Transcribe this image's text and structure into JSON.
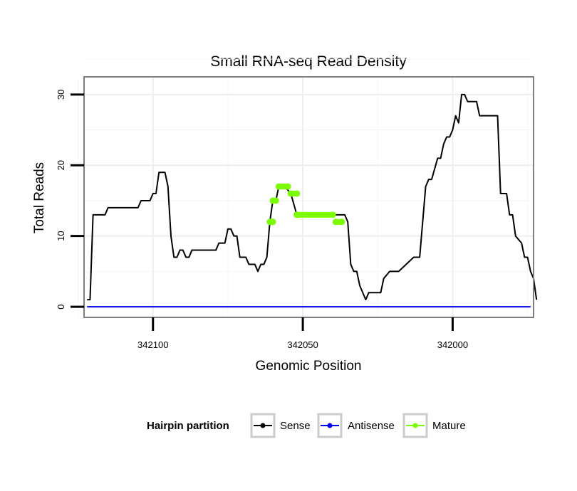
{
  "chart_data": {
    "type": "line",
    "title": "Small RNA-seq Read Density",
    "xlabel": "Genomic Position",
    "ylabel": "Total Reads",
    "x_reversed": true,
    "xlim": [
      342123,
      341973
    ],
    "ylim": [
      -1.5,
      32.5
    ],
    "xticks": [
      342100,
      342050,
      342000
    ],
    "xtick_labels": [
      "342100",
      "342050",
      "342000"
    ],
    "yticks": [
      0,
      10,
      20,
      30
    ],
    "ytick_labels": [
      "0",
      "10",
      "20",
      "30"
    ],
    "grid": true,
    "legend": {
      "title": "Hairpin partition",
      "position": "bottom",
      "entries": [
        "Sense",
        "Antisense",
        "Mature"
      ]
    },
    "colors": {
      "Sense": "#000000",
      "Antisense": "#0000ee",
      "Mature": "#7cfc00"
    },
    "series": [
      {
        "name": "Sense",
        "x": [
          342122,
          342121,
          342120,
          342116,
          342115,
          342114,
          342105,
          342104,
          342101,
          342100,
          342099,
          342098,
          342096,
          342095,
          342094,
          342093,
          342092,
          342091,
          342090,
          342089,
          342088,
          342087,
          342086,
          342079,
          342078,
          342076,
          342075,
          342074,
          342073,
          342072,
          342071,
          342069,
          342068,
          342066,
          342065,
          342064,
          342063,
          342062,
          342061,
          342060,
          342059,
          342058,
          342057,
          342056,
          342054,
          342052,
          342050,
          342048,
          342036,
          342035,
          342034,
          342033,
          342032,
          342031,
          342030,
          342029,
          342028,
          342024,
          342023,
          342021,
          342020,
          342018,
          342013,
          342012,
          342011,
          342009,
          342008,
          342007,
          342005,
          342004,
          342003,
          342002,
          342001,
          342000,
          341999,
          341998,
          341997,
          341996,
          341995,
          341992,
          341991,
          341985,
          341984,
          341982,
          341981,
          341980,
          341979,
          341977,
          341976,
          341975,
          341974
        ],
        "y": [
          1,
          1,
          13,
          13,
          14,
          14,
          14,
          15,
          15,
          16,
          16,
          19,
          19,
          17,
          10,
          7,
          7,
          8,
          8,
          7,
          7,
          8,
          8,
          8,
          9,
          9,
          11,
          11,
          10,
          10,
          7,
          7,
          6,
          6,
          5,
          6,
          6,
          7,
          12,
          15,
          15,
          17,
          17,
          17,
          16,
          13,
          13,
          13,
          13,
          12,
          6,
          5,
          5,
          3,
          2,
          1,
          2,
          2,
          4,
          5,
          5,
          5,
          7,
          7,
          7,
          17,
          18,
          18,
          21,
          21,
          23,
          24,
          24,
          25,
          27,
          26,
          30,
          30,
          29,
          29,
          27,
          27,
          16,
          16,
          13,
          13,
          10,
          9,
          7,
          7,
          5
        ]
      },
      {
        "name": "Antisense",
        "x": [
          342122,
          341974
        ],
        "y": [
          0,
          0
        ]
      },
      {
        "name": "Mature",
        "segments": [
          {
            "x": [
              342061,
              342060
            ],
            "y": [
              12,
              12
            ]
          },
          {
            "x": [
              342060,
              342059
            ],
            "y": [
              15,
              15
            ]
          },
          {
            "x": [
              342058,
              342055
            ],
            "y": [
              17,
              17
            ]
          },
          {
            "x": [
              342054,
              342052
            ],
            "y": [
              16,
              16
            ]
          },
          {
            "x": [
              342052,
              342040
            ],
            "y": [
              13,
              13
            ]
          },
          {
            "x": [
              342039,
              342037
            ],
            "y": [
              12,
              12
            ]
          }
        ]
      }
    ],
    "extra_sense_tail": {
      "x": [
        341974,
        341973,
        341972
      ],
      "y": [
        5,
        4,
        1
      ]
    }
  }
}
